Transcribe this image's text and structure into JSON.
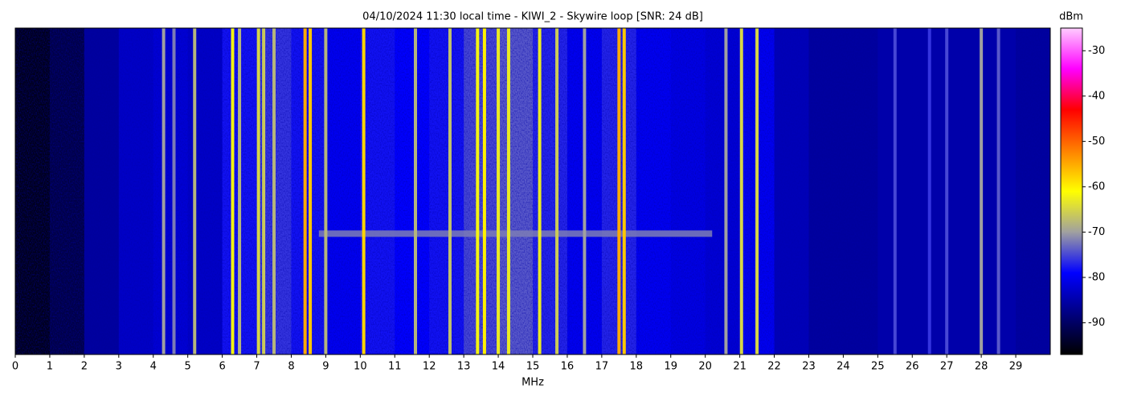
{
  "chart_data": {
    "type": "waterfall",
    "title": "04/10/2024 11:30 local time - KIWI_2 - Skywire loop [SNR: 24 dB]",
    "xlabel": "MHz",
    "colorbar_label": "dBm",
    "xlim": [
      0,
      30
    ],
    "xticks": [
      0,
      1,
      2,
      3,
      4,
      5,
      6,
      7,
      8,
      9,
      10,
      11,
      12,
      13,
      14,
      15,
      16,
      17,
      18,
      19,
      20,
      21,
      22,
      23,
      24,
      25,
      26,
      27,
      28,
      29
    ],
    "clim": [
      -97,
      -25
    ],
    "cticks": [
      -30,
      -40,
      -50,
      -60,
      -70,
      -80,
      -90
    ],
    "colormap": [
      "#000000",
      "#000080",
      "#0000ff",
      "#a0a0a0",
      "#ffff00",
      "#ff8000",
      "#ff0000",
      "#ff00ff",
      "#ffccff"
    ],
    "noise_floor": {
      "bins": [
        0,
        1,
        2,
        3,
        4,
        5,
        6,
        7,
        8,
        9,
        10,
        11,
        12,
        13,
        14,
        15,
        16,
        17,
        18,
        19,
        20,
        21,
        22,
        23,
        24,
        25,
        26,
        27,
        28,
        29,
        30
      ],
      "values": [
        -95,
        -92,
        -86,
        -83,
        -82,
        -83,
        -78,
        -76,
        -78,
        -80,
        -78,
        -79,
        -78,
        -75,
        -74,
        -77,
        -80,
        -77,
        -80,
        -81,
        -82,
        -80,
        -84,
        -86,
        -86,
        -85,
        -85,
        -85,
        -85,
        -86
      ]
    },
    "signals": [
      {
        "x": 4.3,
        "value": -70
      },
      {
        "x": 4.6,
        "value": -72
      },
      {
        "x": 5.2,
        "value": -68
      },
      {
        "x": 6.3,
        "value": -62
      },
      {
        "x": 6.5,
        "value": -68
      },
      {
        "x": 7.05,
        "value": -65
      },
      {
        "x": 7.2,
        "value": -66
      },
      {
        "x": 7.5,
        "value": -68
      },
      {
        "x": 8.4,
        "value": -55
      },
      {
        "x": 8.55,
        "value": -57
      },
      {
        "x": 9.0,
        "value": -68
      },
      {
        "x": 10.1,
        "value": -58
      },
      {
        "x": 11.6,
        "value": -68
      },
      {
        "x": 12.6,
        "value": -67
      },
      {
        "x": 13.4,
        "value": -62
      },
      {
        "x": 13.6,
        "value": -60
      },
      {
        "x": 14.0,
        "value": -63
      },
      {
        "x": 14.3,
        "value": -63
      },
      {
        "x": 15.2,
        "value": -63
      },
      {
        "x": 15.7,
        "value": -66
      },
      {
        "x": 16.5,
        "value": -70
      },
      {
        "x": 17.5,
        "value": -55
      },
      {
        "x": 17.65,
        "value": -57
      },
      {
        "x": 20.6,
        "value": -70
      },
      {
        "x": 21.05,
        "value": -65
      },
      {
        "x": 21.5,
        "value": -65
      },
      {
        "x": 25.5,
        "value": -75
      },
      {
        "x": 26.5,
        "value": -76
      },
      {
        "x": 27.0,
        "value": -75
      },
      {
        "x": 28.0,
        "value": -70
      },
      {
        "x": 28.5,
        "value": -74
      }
    ],
    "band": {
      "xrange": [
        8.8,
        20.2
      ],
      "value": -72
    }
  }
}
